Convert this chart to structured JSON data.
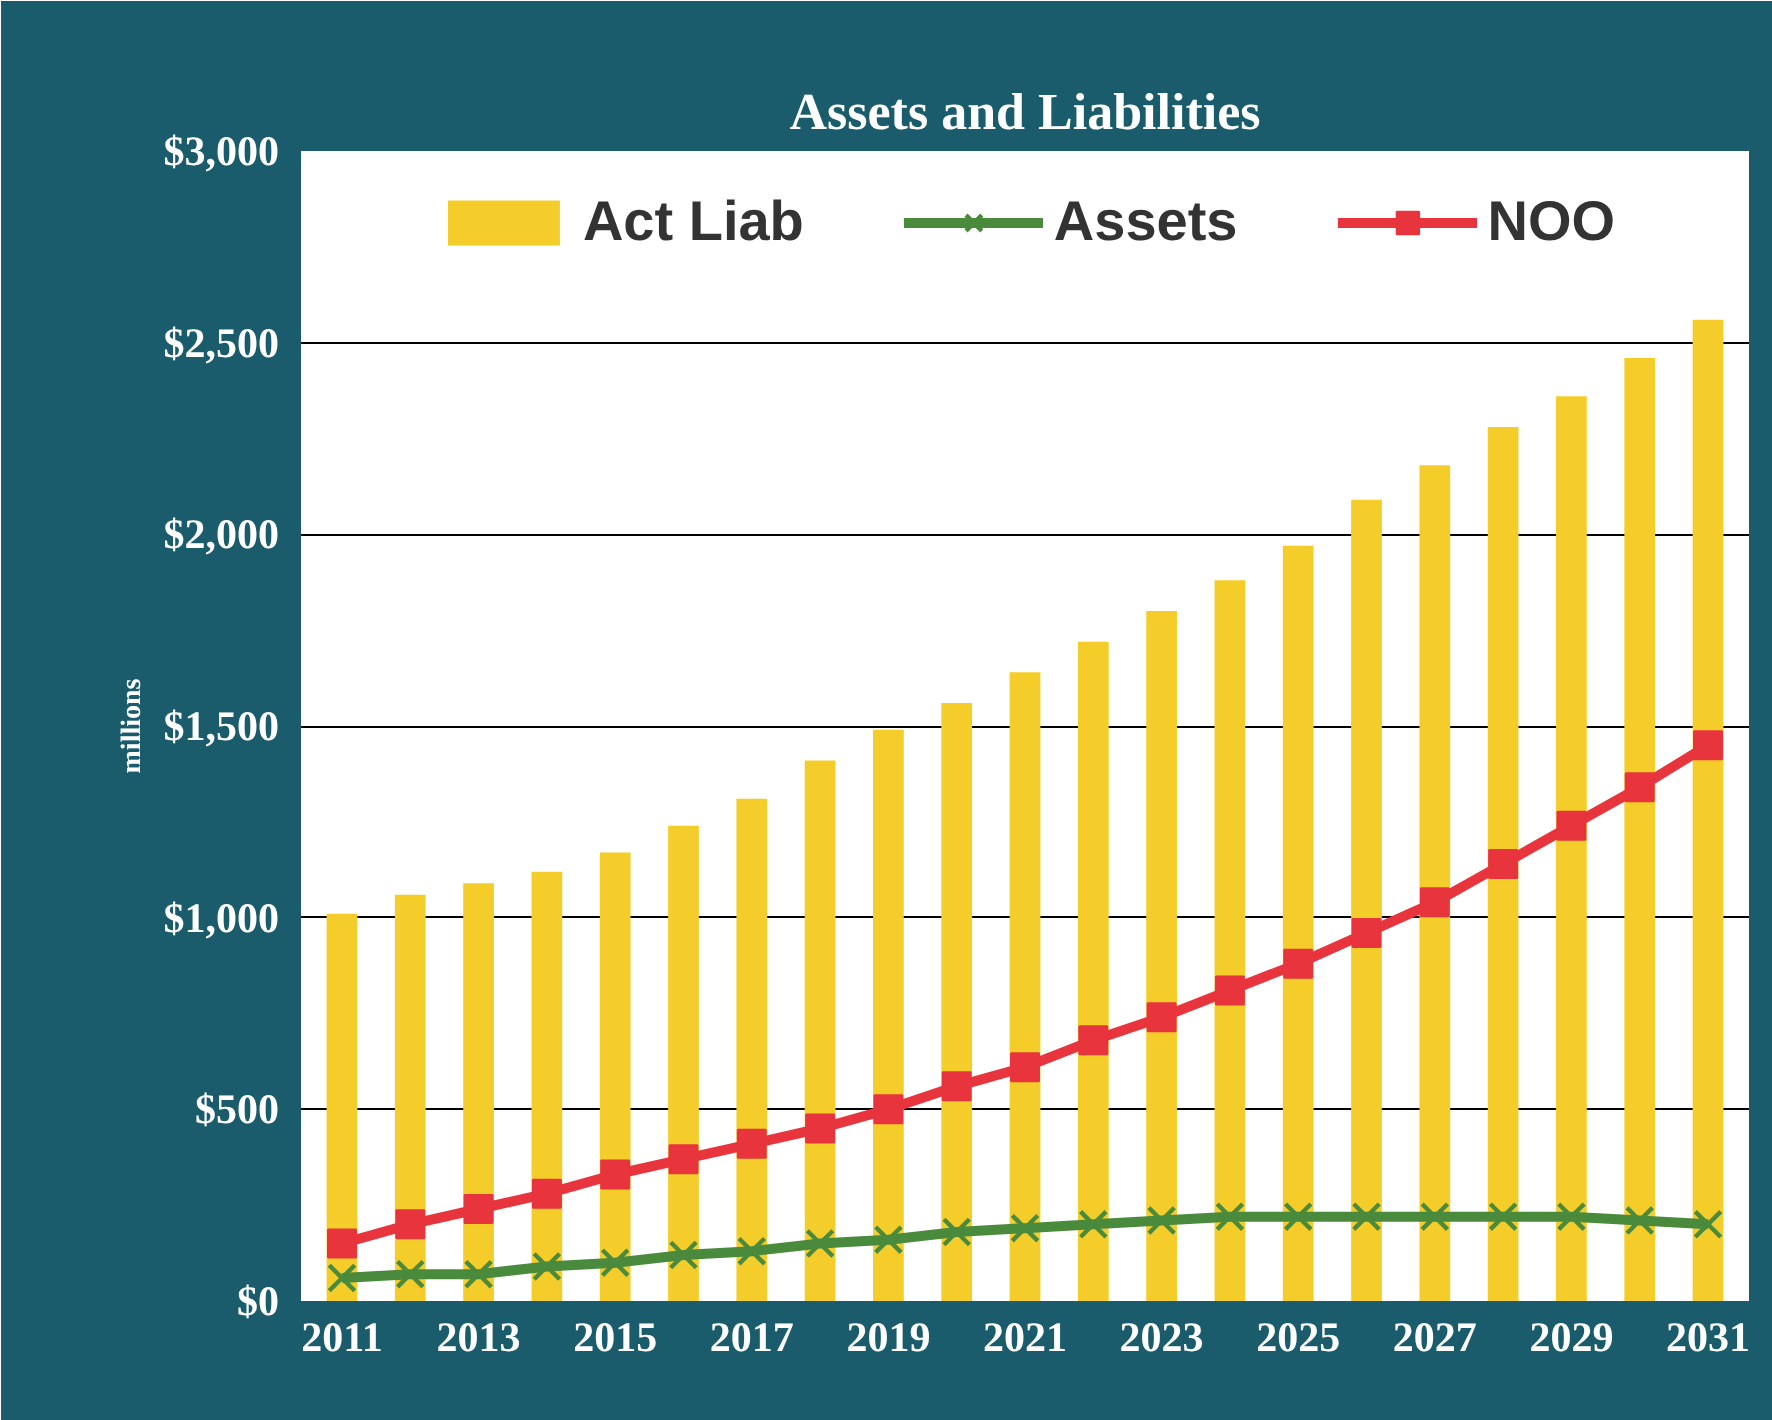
{
  "chart_data": {
    "type": "bar",
    "title": "Assets and Liabilities",
    "ylabel": "millions",
    "categories": [
      "2011",
      null,
      "2013",
      null,
      "2015",
      null,
      "2017",
      null,
      "2019",
      null,
      "2021",
      null,
      "2023",
      null,
      "2025",
      null,
      "2027",
      null,
      "2029",
      null,
      "2031"
    ],
    "series": [
      {
        "name": "Act Liab",
        "color": "#f5cd2a",
        "values": [
          1010,
          1060,
          1090,
          1120,
          1170,
          1240,
          1310,
          1410,
          1490,
          1560,
          1640,
          1720,
          1800,
          1880,
          1970,
          2090,
          2180,
          2280,
          2360,
          2460,
          2560
        ]
      },
      {
        "name": "Assets",
        "type": "line",
        "color": "#4a8a3c",
        "marker": "cross",
        "values": [
          60,
          70,
          70,
          90,
          100,
          120,
          130,
          150,
          160,
          180,
          190,
          200,
          210,
          220,
          220,
          220,
          220,
          220,
          220,
          210,
          200
        ]
      },
      {
        "name": "NOO",
        "type": "line",
        "color": "#e8343c",
        "marker": "square",
        "values": [
          150,
          200,
          240,
          280,
          330,
          370,
          410,
          450,
          500,
          560,
          610,
          680,
          740,
          810,
          880,
          960,
          1040,
          1140,
          1240,
          1340,
          1450
        ]
      }
    ],
    "ylim": [
      0,
      3000
    ],
    "yticks": [
      {
        "value": 0,
        "label": "$0"
      },
      {
        "value": 500,
        "label": "$500"
      },
      {
        "value": 1000,
        "label": "$1,000"
      },
      {
        "value": 1500,
        "label": "$1,500"
      },
      {
        "value": 2000,
        "label": "$2,000"
      },
      {
        "value": 2500,
        "label": "$2,500"
      },
      {
        "value": 3000,
        "label": "$3,000"
      }
    ],
    "grid": "y",
    "legend": "top"
  }
}
